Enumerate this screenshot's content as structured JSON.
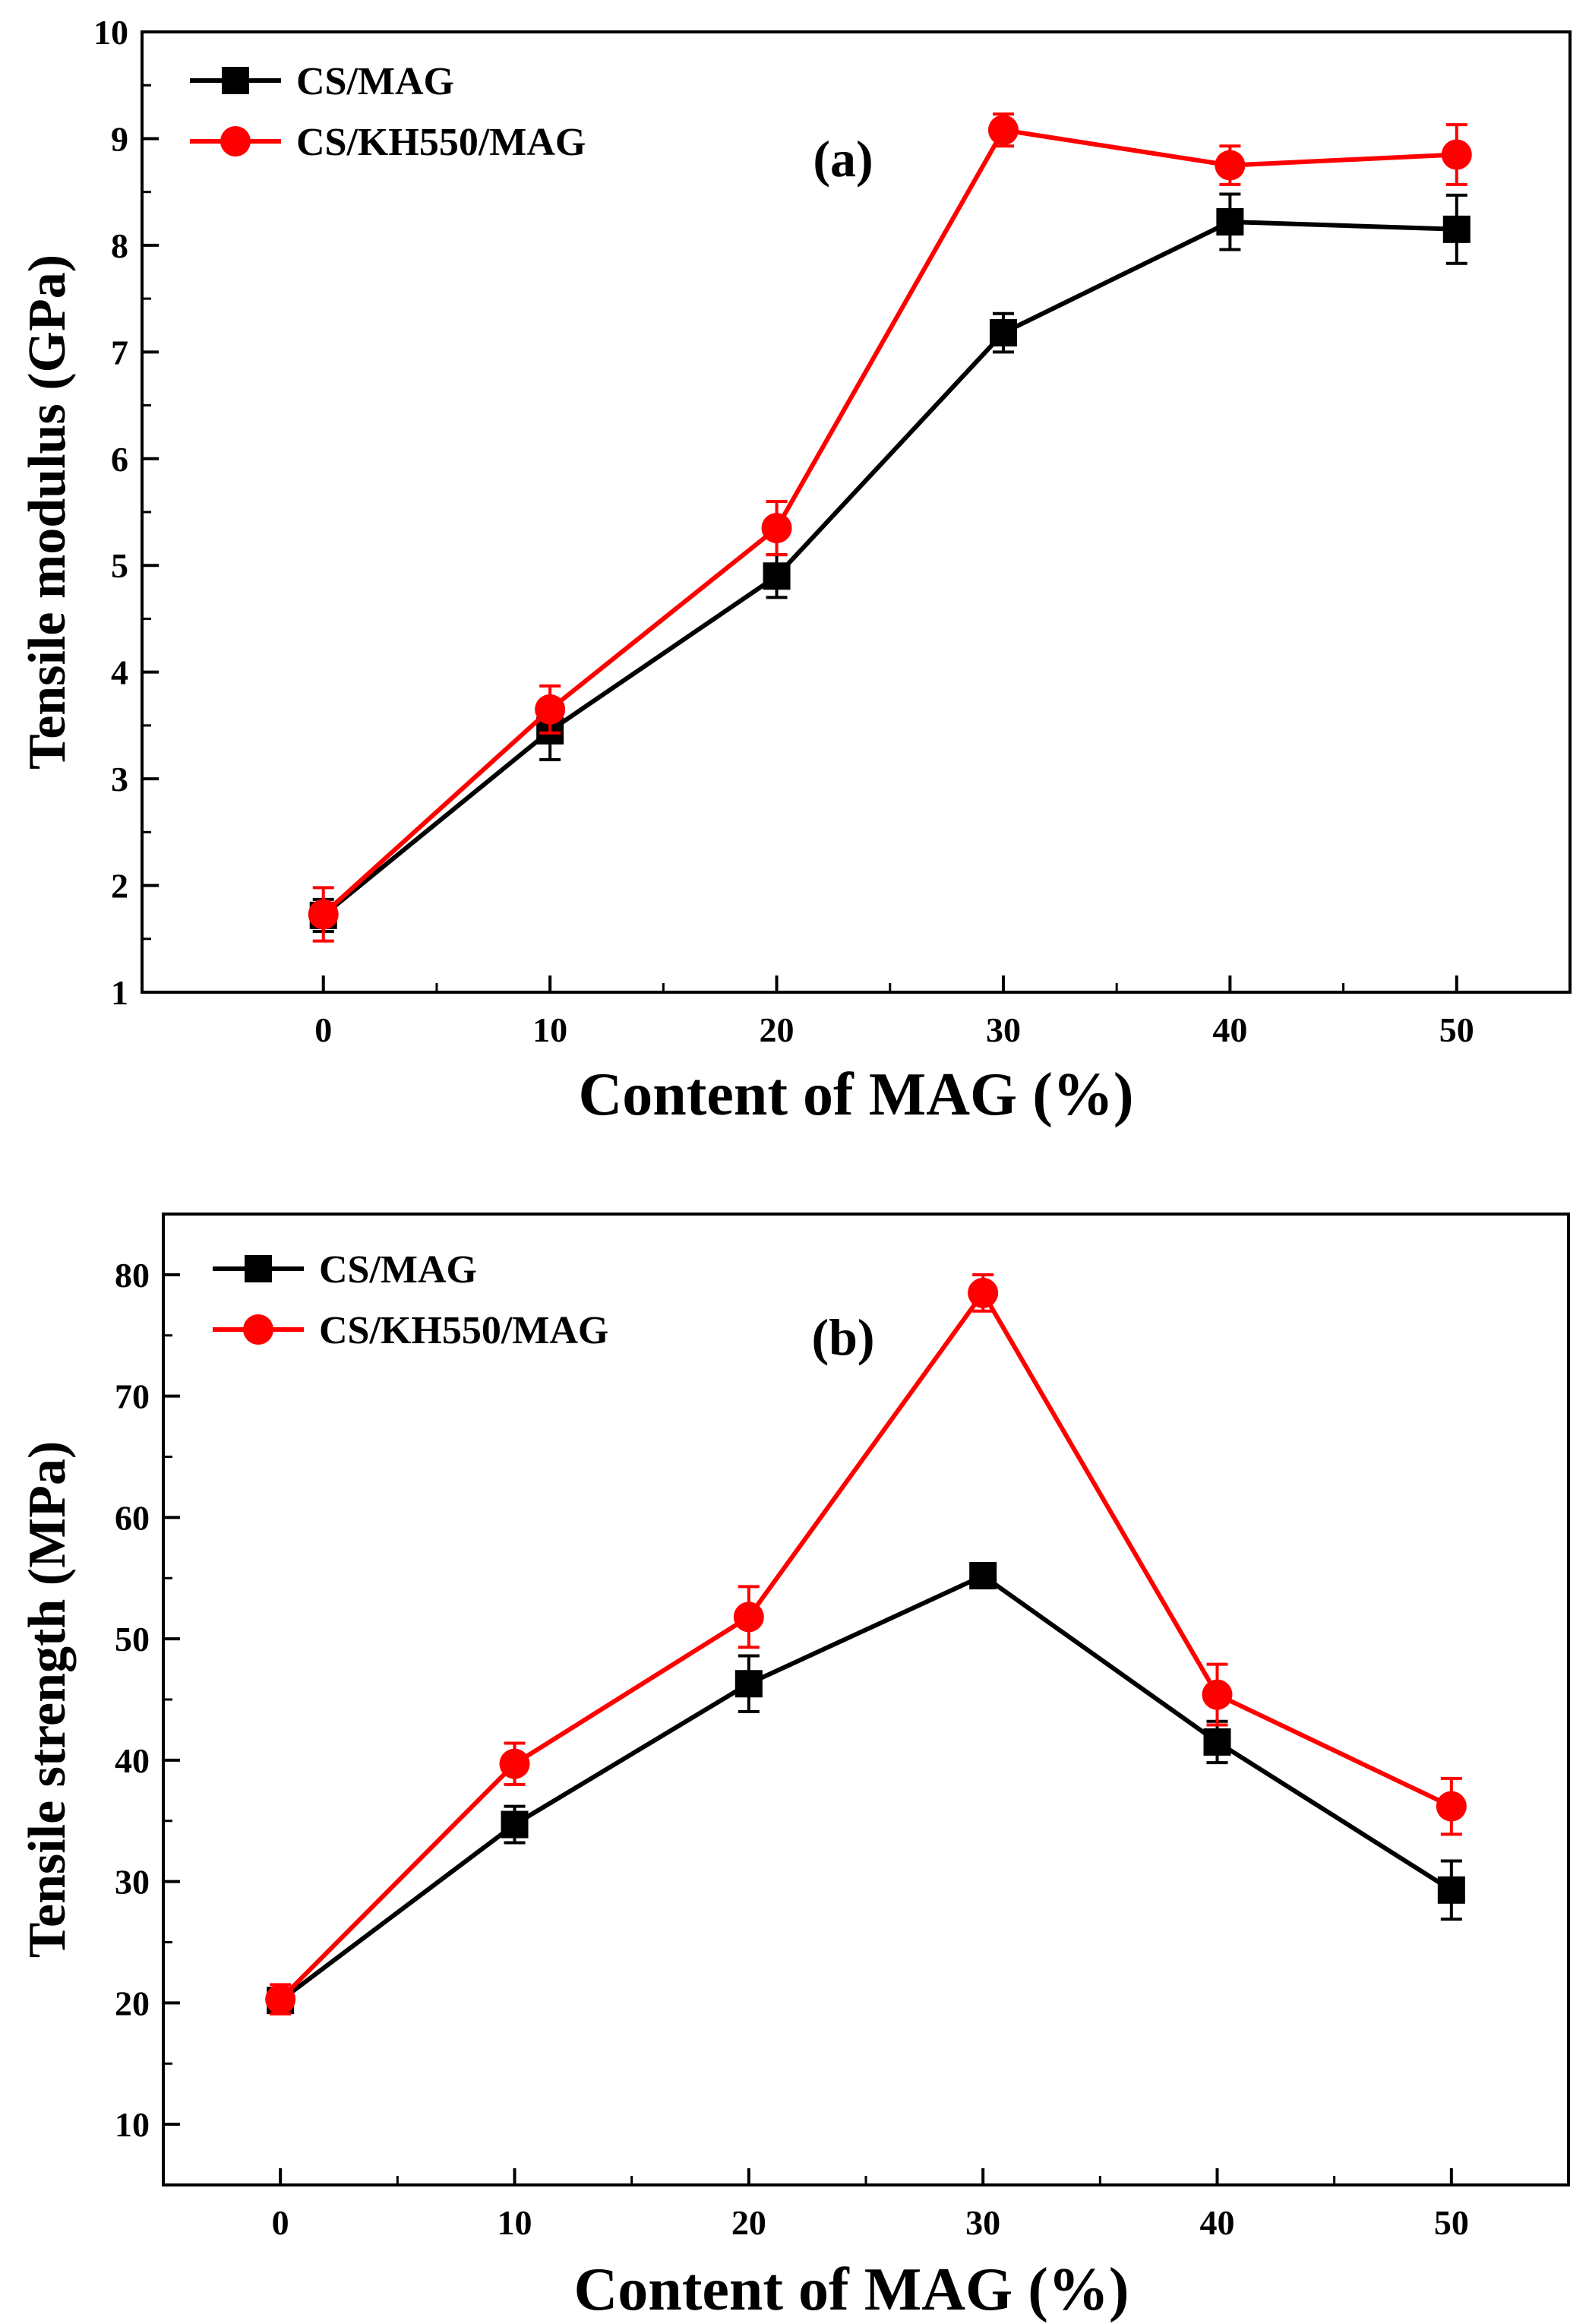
{
  "chart_data": [
    {
      "type": "line",
      "panel_label": "(a)",
      "xlabel": "Content of MAG (%)",
      "ylabel": "Tensile modulus (GPa)",
      "x": [
        0,
        10,
        20,
        30,
        40,
        50
      ],
      "xticks": [
        0,
        10,
        20,
        30,
        40,
        50
      ],
      "xlim": [
        -8,
        55
      ],
      "ylim": [
        1,
        10
      ],
      "yticks": [
        1,
        2,
        3,
        4,
        5,
        6,
        7,
        8,
        9,
        10
      ],
      "legend_position": "top-left",
      "grid": false,
      "series": [
        {
          "name": "CS/MAG",
          "color": "#000000",
          "marker": "square",
          "values": [
            1.72,
            3.45,
            4.9,
            7.18,
            8.22,
            8.15
          ],
          "errors": [
            0.15,
            0.27,
            0.2,
            0.18,
            0.26,
            0.32
          ]
        },
        {
          "name": "CS/KH550/MAG",
          "color": "#ff0000",
          "marker": "circle",
          "values": [
            1.73,
            3.65,
            5.35,
            9.08,
            8.75,
            8.85
          ],
          "errors": [
            0.25,
            0.22,
            0.25,
            0.15,
            0.18,
            0.28
          ]
        }
      ]
    },
    {
      "type": "line",
      "panel_label": "(b)",
      "xlabel": "Content of MAG (%)",
      "ylabel": "Tensile strength (MPa)",
      "x": [
        0,
        10,
        20,
        30,
        40,
        50
      ],
      "xticks": [
        0,
        10,
        20,
        30,
        40,
        50
      ],
      "xlim": [
        -5,
        55
      ],
      "ylim": [
        5,
        85
      ],
      "yticks": [
        10,
        20,
        30,
        40,
        50,
        60,
        70,
        80
      ],
      "legend_position": "top-left",
      "grid": false,
      "series": [
        {
          "name": "CS/MAG",
          "color": "#000000",
          "marker": "square",
          "values": [
            20.2,
            34.7,
            46.3,
            55.2,
            41.5,
            29.3
          ],
          "errors": [
            1.0,
            1.5,
            2.3,
            1.0,
            1.7,
            2.4
          ]
        },
        {
          "name": "CS/KH550/MAG",
          "color": "#ff0000",
          "marker": "circle",
          "values": [
            20.3,
            39.7,
            51.8,
            78.5,
            45.4,
            36.2
          ],
          "errors": [
            1.2,
            1.7,
            2.5,
            1.5,
            2.5,
            2.3
          ]
        }
      ]
    }
  ]
}
